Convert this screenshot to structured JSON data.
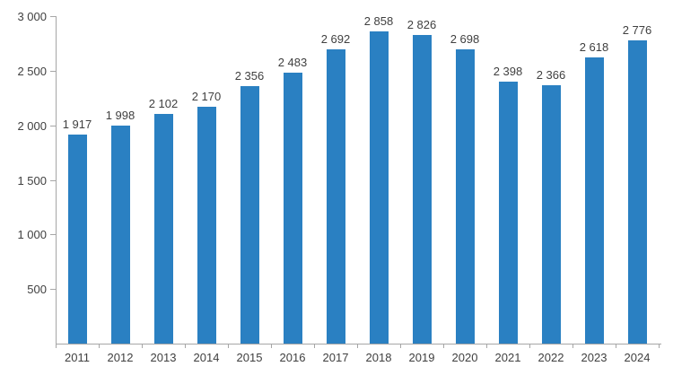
{
  "chart_data": {
    "type": "bar",
    "title": "",
    "xlabel": "",
    "ylabel": "",
    "categories": [
      "2011",
      "2012",
      "2013",
      "2014",
      "2015",
      "2016",
      "2017",
      "2018",
      "2019",
      "2020",
      "2021",
      "2022",
      "2023",
      "2024"
    ],
    "values": [
      1917,
      1998,
      2102,
      2170,
      2356,
      2483,
      2692,
      2858,
      2826,
      2698,
      2398,
      2366,
      2618,
      2776
    ],
    "value_labels": [
      "1 917",
      "1 998",
      "2 102",
      "2 170",
      "2 356",
      "2 483",
      "2 692",
      "2 858",
      "2 826",
      "2 698",
      "2 398",
      "2 366",
      "2 618",
      "2 776"
    ],
    "ylim": [
      0,
      3000
    ],
    "y_ticks": [
      {
        "value": 500,
        "label": "500"
      },
      {
        "value": 1000,
        "label": "1 000"
      },
      {
        "value": 1500,
        "label": "1 500"
      },
      {
        "value": 2000,
        "label": "2 000"
      },
      {
        "value": 2500,
        "label": "2 500"
      },
      {
        "value": 3000,
        "label": "3 000"
      }
    ],
    "grid": false,
    "legend": null,
    "colors": {
      "bar": "#2a80c2",
      "axis": "#a6a6a6",
      "text": "#404040"
    }
  }
}
